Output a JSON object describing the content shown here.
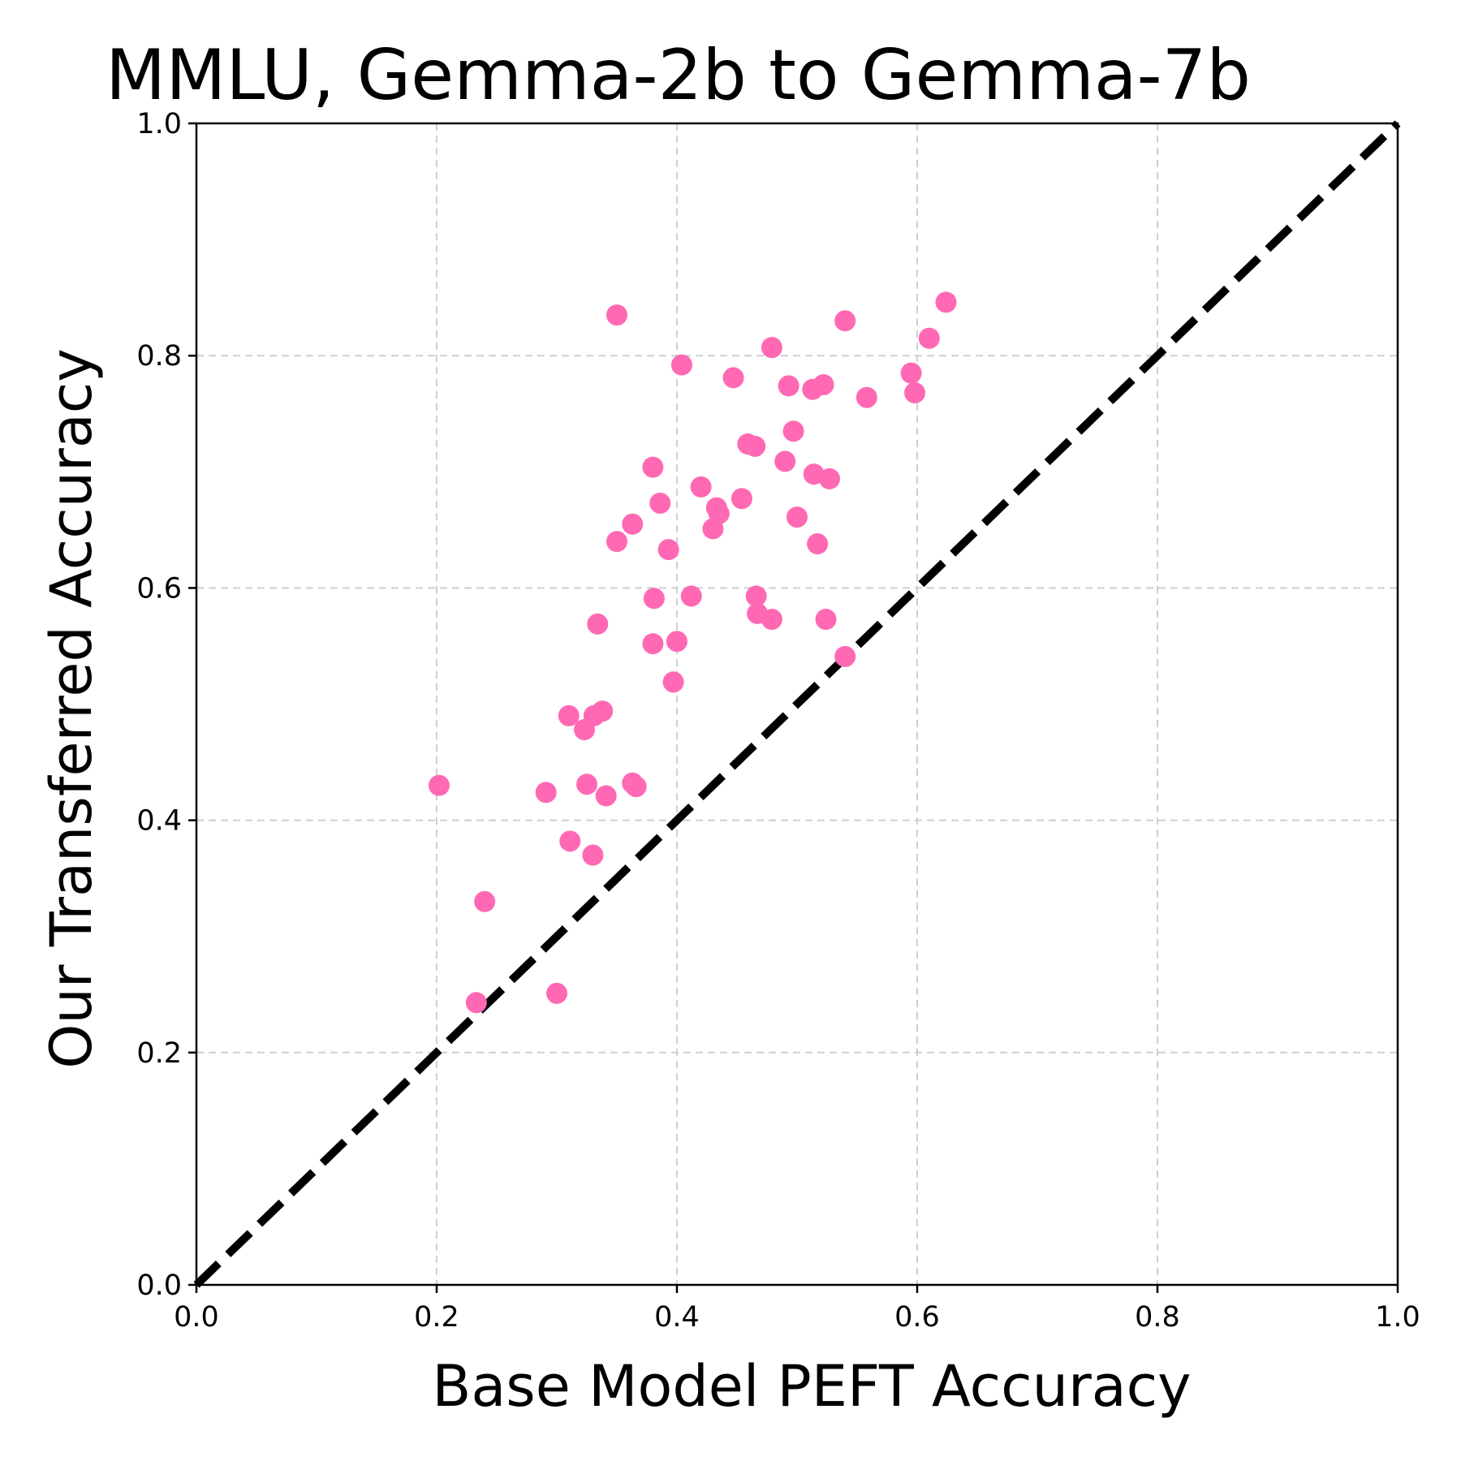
{
  "chart_data": {
    "type": "scatter",
    "title": "MMLU, Gemma-2b to Gemma-7b",
    "xlabel": "Base Model PEFT Accuracy",
    "ylabel": "Our Transferred Accuracy",
    "xlim": [
      0.0,
      1.0
    ],
    "ylim": [
      0.0,
      1.0
    ],
    "xticks": [
      "0.0",
      "0.2",
      "0.4",
      "0.6",
      "0.8",
      "1.0"
    ],
    "yticks": [
      "0.0",
      "0.2",
      "0.4",
      "0.6",
      "0.8",
      "1.0"
    ],
    "grid": true,
    "point_color": "#ff69b4",
    "reference_line": {
      "style": "dashed",
      "color": "#000000",
      "from": [
        0,
        0
      ],
      "to": [
        1,
        1
      ]
    },
    "points": [
      [
        0.202,
        0.43
      ],
      [
        0.233,
        0.243
      ],
      [
        0.24,
        0.33
      ],
      [
        0.291,
        0.424
      ],
      [
        0.3,
        0.251
      ],
      [
        0.31,
        0.49
      ],
      [
        0.311,
        0.382
      ],
      [
        0.323,
        0.478
      ],
      [
        0.325,
        0.431
      ],
      [
        0.33,
        0.37
      ],
      [
        0.331,
        0.49
      ],
      [
        0.334,
        0.569
      ],
      [
        0.338,
        0.494
      ],
      [
        0.341,
        0.421
      ],
      [
        0.35,
        0.64
      ],
      [
        0.35,
        0.835
      ],
      [
        0.363,
        0.655
      ],
      [
        0.363,
        0.432
      ],
      [
        0.366,
        0.429
      ],
      [
        0.38,
        0.704
      ],
      [
        0.38,
        0.552
      ],
      [
        0.381,
        0.591
      ],
      [
        0.386,
        0.673
      ],
      [
        0.393,
        0.633
      ],
      [
        0.397,
        0.519
      ],
      [
        0.4,
        0.554
      ],
      [
        0.404,
        0.792
      ],
      [
        0.412,
        0.593
      ],
      [
        0.42,
        0.687
      ],
      [
        0.43,
        0.651
      ],
      [
        0.433,
        0.669
      ],
      [
        0.435,
        0.664
      ],
      [
        0.447,
        0.781
      ],
      [
        0.454,
        0.677
      ],
      [
        0.459,
        0.724
      ],
      [
        0.465,
        0.722
      ],
      [
        0.466,
        0.593
      ],
      [
        0.467,
        0.578
      ],
      [
        0.479,
        0.807
      ],
      [
        0.479,
        0.573
      ],
      [
        0.49,
        0.709
      ],
      [
        0.493,
        0.774
      ],
      [
        0.497,
        0.735
      ],
      [
        0.5,
        0.661
      ],
      [
        0.513,
        0.771
      ],
      [
        0.514,
        0.698
      ],
      [
        0.517,
        0.638
      ],
      [
        0.522,
        0.775
      ],
      [
        0.524,
        0.573
      ],
      [
        0.527,
        0.694
      ],
      [
        0.54,
        0.83
      ],
      [
        0.54,
        0.541
      ],
      [
        0.558,
        0.764
      ],
      [
        0.595,
        0.785
      ],
      [
        0.598,
        0.768
      ],
      [
        0.61,
        0.815
      ],
      [
        0.624,
        0.846
      ]
    ]
  }
}
